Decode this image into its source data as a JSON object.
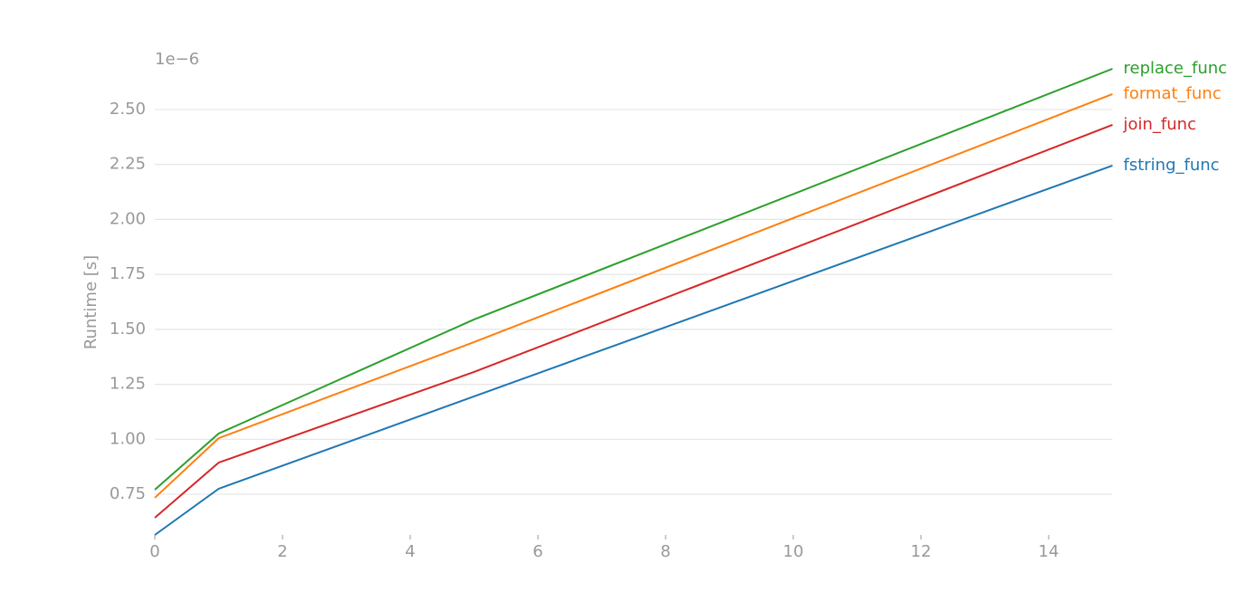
{
  "chart_data": {
    "type": "line",
    "y_label": "Runtime [s]",
    "y_offset_label": "1e−6",
    "x": [
      0,
      1,
      5,
      15
    ],
    "series": [
      {
        "name": "replace_func",
        "color": "#2ca02c",
        "values": [
          0.771,
          1.026,
          1.545,
          2.685
        ]
      },
      {
        "name": "format_func",
        "color": "#ff7f0e",
        "values": [
          0.734,
          1.005,
          1.442,
          2.57
        ]
      },
      {
        "name": "join_func",
        "color": "#d62728",
        "values": [
          0.643,
          0.894,
          1.306,
          2.43
        ]
      },
      {
        "name": "fstring_func",
        "color": "#1f77b4",
        "values": [
          0.565,
          0.775,
          1.195,
          2.245
        ]
      }
    ],
    "xlim": [
      0,
      15
    ],
    "ylim": [
      0.565,
      2.685
    ],
    "xticks": [
      0,
      2,
      4,
      6,
      8,
      10,
      12,
      14
    ],
    "yticks": [
      {
        "value": 0.75,
        "label": "0.75"
      },
      {
        "value": 1,
        "label": "1.00"
      },
      {
        "value": 1.25,
        "label": "1.25"
      },
      {
        "value": 1.5,
        "label": "1.50"
      },
      {
        "value": 1.75,
        "label": "1.75"
      },
      {
        "value": 2,
        "label": "2.00"
      },
      {
        "value": 2.25,
        "label": "2.25"
      },
      {
        "value": 2.5,
        "label": "2.50"
      }
    ],
    "grid": true
  }
}
